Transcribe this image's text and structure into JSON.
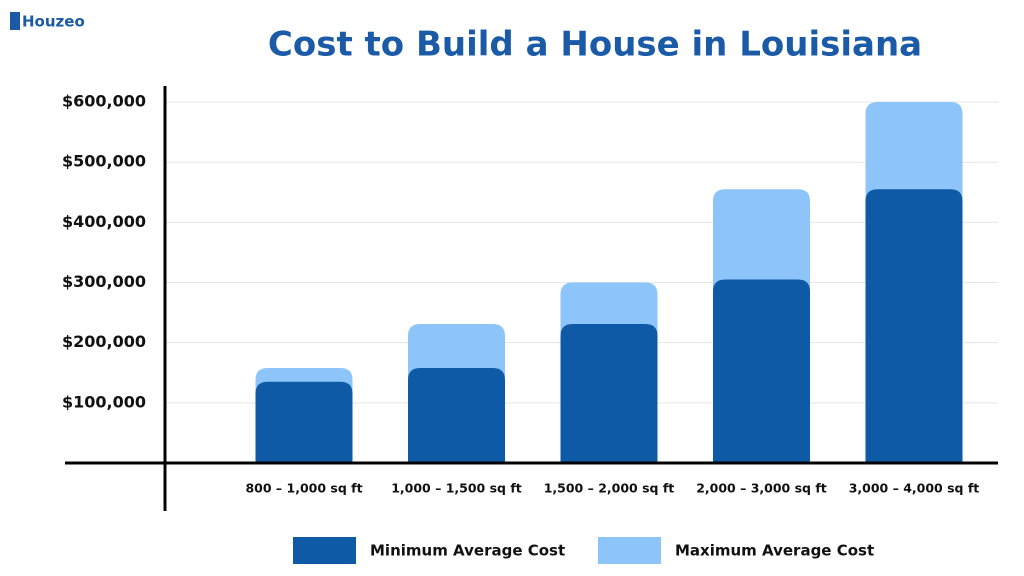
{
  "logo": "Houzeo",
  "chart_data": {
    "type": "bar",
    "bar_mode": "overlay",
    "title": "Cost to Build a House in Louisiana",
    "categories": [
      "800 – 1,000 sq ft",
      "1,000 – 1,500 sq ft",
      "1,500 – 2,000 sq ft",
      "2,000 – 3,000 sq ft",
      "3,000 – 4,000 sq ft"
    ],
    "series": [
      {
        "name": "Maximum Average Cost",
        "color": "#8dc5fb",
        "values": [
          158000,
          231000,
          300000,
          455000,
          600000
        ]
      },
      {
        "name": "Minimum Average Cost",
        "color": "#0e5aa7",
        "values": [
          135000,
          158000,
          231000,
          305000,
          455000
        ]
      }
    ],
    "legend_order": [
      1,
      0
    ],
    "ylim": [
      0,
      620000
    ],
    "yticks": [
      {
        "value": 100000,
        "label": "$100,000"
      },
      {
        "value": 200000,
        "label": "$200,000"
      },
      {
        "value": 300000,
        "label": "$300,000"
      },
      {
        "value": 400000,
        "label": "$400,000"
      },
      {
        "value": 500000,
        "label": "$500,000"
      },
      {
        "value": 600000,
        "label": "$600,000"
      }
    ],
    "grid": true
  }
}
